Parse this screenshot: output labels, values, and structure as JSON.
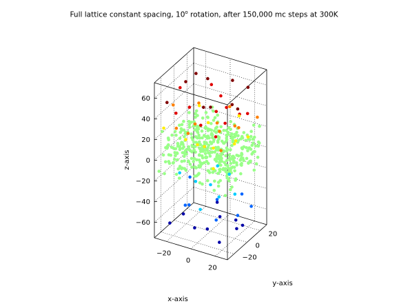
{
  "chart_data": {
    "type": "scatter",
    "title_main": "Full lattice constant spacing, 10",
    "title_sup": "o",
    "title_rest": " rotation, after 150,000 mc steps at 300K",
    "xlabel": "x-axis",
    "ylabel": "y-axis",
    "zlabel": "z-axis",
    "xlim": [
      -30,
      30
    ],
    "ylim": [
      -30,
      30
    ],
    "zlim": [
      -75,
      75
    ],
    "xticks": [
      -20,
      0,
      20
    ],
    "yticks": [
      -20,
      0,
      20
    ],
    "zticks": [
      -60,
      -40,
      -20,
      0,
      20,
      40,
      60
    ],
    "grid": true,
    "colormap": "jet",
    "colors": {
      "darkred": "#7f0000",
      "red": "#e00000",
      "orange": "#ff8000",
      "yellow": "#ffee00",
      "green": "#99ff88",
      "cyan": "#00ccff",
      "blue": "#0064ff",
      "darkblue": "#0000a8"
    },
    "series": [
      {
        "color": "darkred",
        "points": [
          [
            -15,
            -10,
            70
          ],
          [
            -5,
            5,
            68
          ],
          [
            10,
            15,
            66
          ],
          [
            20,
            20,
            60
          ],
          [
            -20,
            15,
            62
          ],
          [
            25,
            -5,
            55
          ],
          [
            5,
            -20,
            58
          ],
          [
            -25,
            -20,
            52
          ],
          [
            15,
            5,
            50
          ],
          [
            0,
            0,
            45
          ]
        ]
      },
      {
        "color": "red",
        "points": [
          [
            -25,
            0,
            55
          ],
          [
            -10,
            20,
            52
          ],
          [
            10,
            -10,
            50
          ],
          [
            20,
            -15,
            45
          ],
          [
            -15,
            -25,
            48
          ],
          [
            25,
            10,
            42
          ],
          [
            -5,
            25,
            40
          ],
          [
            5,
            15,
            38
          ],
          [
            -20,
            5,
            35
          ],
          [
            15,
            -20,
            33
          ],
          [
            0,
            -15,
            36
          ],
          [
            12,
            22,
            30
          ]
        ]
      },
      {
        "color": "orange",
        "points": [
          [
            -28,
            -5,
            40
          ],
          [
            -15,
            10,
            38
          ],
          [
            5,
            20,
            36
          ],
          [
            20,
            0,
            34
          ],
          [
            -5,
            -25,
            32
          ],
          [
            25,
            25,
            30
          ],
          [
            10,
            -5,
            28
          ],
          [
            -20,
            -15,
            26
          ],
          [
            0,
            10,
            24
          ],
          [
            15,
            15,
            22
          ],
          [
            -10,
            -5,
            28
          ],
          [
            22,
            -25,
            25
          ]
        ]
      },
      {
        "color": "yellow",
        "points": [
          [
            -25,
            -25,
            30
          ],
          [
            -20,
            20,
            28
          ],
          [
            10,
            25,
            26
          ],
          [
            25,
            -10,
            24
          ],
          [
            0,
            -20,
            20
          ],
          [
            -10,
            15,
            18
          ],
          [
            18,
            5,
            16
          ],
          [
            -15,
            -10,
            14
          ],
          [
            5,
            -5,
            10
          ],
          [
            20,
            20,
            12
          ],
          [
            -5,
            0,
            5
          ],
          [
            12,
            -18,
            0
          ]
        ]
      },
      {
        "color": "cyan",
        "points": [
          [
            -20,
            -10,
            -20
          ],
          [
            10,
            10,
            -22
          ],
          [
            -5,
            20,
            -25
          ],
          [
            15,
            -15,
            -28
          ],
          [
            0,
            0,
            -30
          ],
          [
            -15,
            5,
            -35
          ],
          [
            20,
            0,
            -32
          ],
          [
            5,
            -25,
            -38
          ]
        ]
      },
      {
        "color": "blue",
        "points": [
          [
            -25,
            15,
            -40
          ],
          [
            -10,
            -20,
            -42
          ],
          [
            15,
            20,
            -45
          ],
          [
            25,
            -5,
            -48
          ],
          [
            0,
            10,
            -50
          ],
          [
            -15,
            -5,
            -52
          ],
          [
            10,
            -10,
            -55
          ],
          [
            20,
            25,
            -58
          ]
        ]
      },
      {
        "color": "darkblue",
        "points": [
          [
            -20,
            -25,
            -60
          ],
          [
            5,
            5,
            -62
          ],
          [
            -5,
            -15,
            -65
          ],
          [
            18,
            -20,
            -68
          ],
          [
            -25,
            5,
            -70
          ],
          [
            10,
            20,
            -72
          ],
          [
            22,
            8,
            -66
          ],
          [
            -8,
            25,
            -64
          ],
          [
            0,
            -5,
            -70
          ],
          [
            15,
            12,
            -74
          ]
        ]
      }
    ],
    "green_cluster": {
      "color": "green",
      "count": 420,
      "x_range": [
        -28,
        28
      ],
      "y_range": [
        -28,
        28
      ],
      "z_center": 5,
      "z_spread": 22
    }
  }
}
